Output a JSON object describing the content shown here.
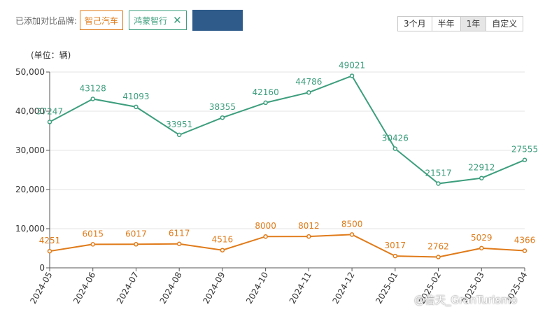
{
  "filter": {
    "label": "已添加对比品牌:",
    "brands": [
      {
        "name": "智己汽车",
        "color": "#e07b1a",
        "removable": false
      },
      {
        "name": "鸿蒙智行",
        "color": "#3d9e7d",
        "removable": true
      }
    ],
    "close_icon": "close-icon",
    "slot_color": "#2e5b8a"
  },
  "range_tabs": [
    {
      "label": "3个月",
      "active": false
    },
    {
      "label": "半年",
      "active": false
    },
    {
      "label": "1年",
      "active": true
    },
    {
      "label": "自定义",
      "active": false
    }
  ],
  "unit_label": "(单位：辆)",
  "watermark": "@信天_GranTurismo",
  "chart_data": {
    "type": "line",
    "categories": [
      "2024-05",
      "2024-06",
      "2024-07",
      "2024-08",
      "2024-09",
      "2024-10",
      "2024-11",
      "2024-12",
      "2025-01",
      "2025-02",
      "2025-03",
      "2025-04"
    ],
    "series": [
      {
        "name": "鸿蒙智行",
        "color": "#3d9e7d",
        "values": [
          37247,
          43128,
          41093,
          33951,
          38355,
          42160,
          44786,
          49021,
          30426,
          21517,
          22912,
          27555
        ]
      },
      {
        "name": "智己汽车",
        "color": "#e07b1a",
        "values": [
          4251,
          6015,
          6017,
          6117,
          4516,
          8000,
          8012,
          8500,
          3017,
          2762,
          5029,
          4366
        ]
      }
    ],
    "yticks": [
      "0",
      "10,000",
      "20,000",
      "30,000",
      "40,000",
      "50,000"
    ],
    "ylim": [
      0,
      50000
    ],
    "grid": true,
    "legend": "none"
  }
}
